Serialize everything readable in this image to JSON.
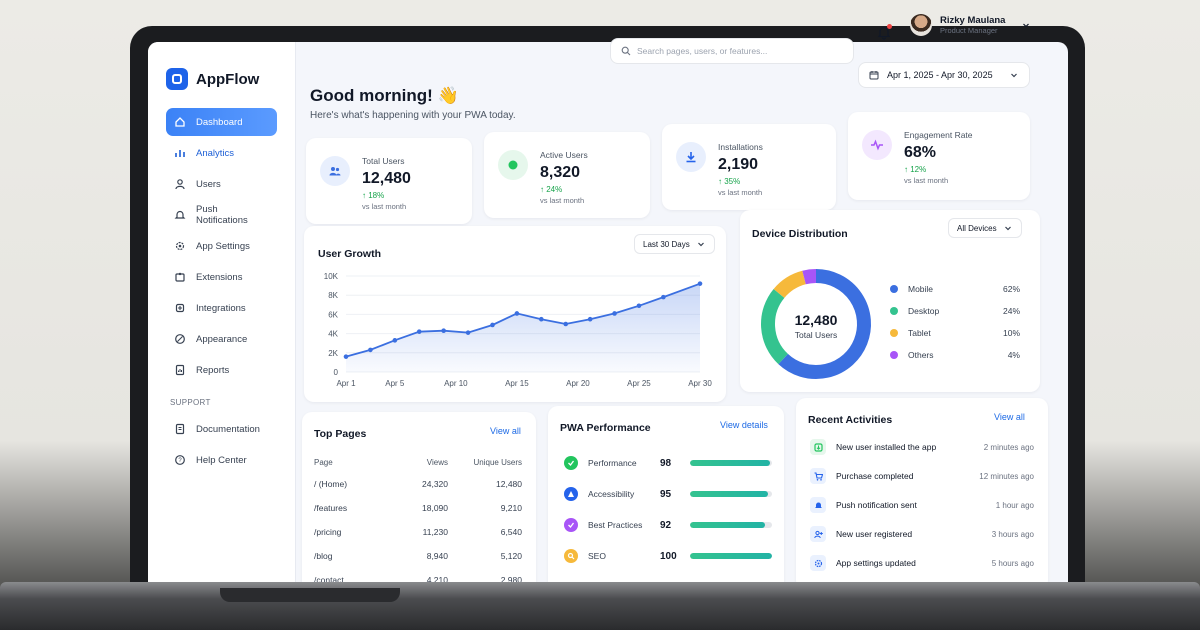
{
  "app": {
    "name": "AppFlow"
  },
  "sidebar": {
    "items": [
      {
        "label": "Dashboard",
        "icon": "home-icon"
      },
      {
        "label": "Analytics",
        "icon": "bar-chart-icon"
      },
      {
        "label": "Users",
        "icon": "user-icon"
      },
      {
        "label": "Push Notifications",
        "icon": "bell-icon"
      },
      {
        "label": "App Settings",
        "icon": "gear-icon"
      },
      {
        "label": "Extensions",
        "icon": "puzzle-icon"
      },
      {
        "label": "Integrations",
        "icon": "plug-icon"
      },
      {
        "label": "Appearance",
        "icon": "palette-icon"
      },
      {
        "label": "Reports",
        "icon": "report-icon"
      }
    ],
    "support_heading": "SUPPORT",
    "support_items": [
      {
        "label": "Documentation",
        "icon": "document-icon"
      },
      {
        "label": "Help Center",
        "icon": "help-icon"
      }
    ]
  },
  "header": {
    "search_placeholder": "Search pages, users, or features...",
    "user": {
      "name": "Rizky Maulana",
      "role": "Product Manager"
    },
    "date_range": "Apr 1, 2025 - Apr 30, 2025"
  },
  "greeting": {
    "title": "Good morning! 👋",
    "subtitle": "Here's what's happening with your PWA today."
  },
  "stats": [
    {
      "label": "Total Users",
      "value": "12,480",
      "delta": "↑ 18%",
      "note": "vs last month",
      "color": "#3b6fe0"
    },
    {
      "label": "Active Users",
      "value": "8,320",
      "delta": "↑ 24%",
      "note": "vs last month",
      "color": "#22c55e"
    },
    {
      "label": "Installations",
      "value": "2,190",
      "delta": "↑ 35%",
      "note": "vs last month",
      "color": "#2563eb"
    },
    {
      "label": "Engagement Rate",
      "value": "68%",
      "delta": "↑ 12%",
      "note": "vs last month",
      "color": "#a855f7"
    }
  ],
  "user_growth": {
    "title": "User Growth",
    "filter": "Last 30 Days",
    "chart_data": {
      "type": "area",
      "x": [
        "Apr 1",
        "Apr 3",
        "Apr 5",
        "Apr 7",
        "Apr 9",
        "Apr 11",
        "Apr 13",
        "Apr 15",
        "Apr 17",
        "Apr 19",
        "Apr 21",
        "Apr 23",
        "Apr 25",
        "Apr 27",
        "Apr 30"
      ],
      "values": [
        1600,
        2300,
        3300,
        4200,
        4300,
        4100,
        4900,
        6100,
        5500,
        5000,
        5500,
        6100,
        6900,
        7800,
        9200
      ],
      "x_ticks": [
        "Apr 1",
        "Apr 5",
        "Apr 10",
        "Apr 15",
        "Apr 20",
        "Apr 25",
        "Apr 30"
      ],
      "y_ticks": [
        "0",
        "2K",
        "4K",
        "6K",
        "8K",
        "10K"
      ],
      "ylim": [
        0,
        10000
      ],
      "color": "#3b6fe0"
    }
  },
  "device_distribution": {
    "title": "Device Distribution",
    "filter": "All Devices",
    "center_value": "12,480",
    "center_label": "Total Users",
    "chart_data": {
      "type": "pie",
      "categories": [
        "Mobile",
        "Desktop",
        "Tablet",
        "Others"
      ],
      "values": [
        62,
        24,
        10,
        4
      ],
      "labels": [
        "62%",
        "24%",
        "10%",
        "4%"
      ],
      "colors": [
        "#3b6fe0",
        "#34c38f",
        "#f6b93b",
        "#a855f7"
      ]
    }
  },
  "top_pages": {
    "title": "Top Pages",
    "link": "View all",
    "headers": [
      "Page",
      "Views",
      "Unique Users"
    ],
    "rows": [
      [
        "/ (Home)",
        "24,320",
        "12,480"
      ],
      [
        "/features",
        "18,090",
        "9,210"
      ],
      [
        "/pricing",
        "11,230",
        "6,540"
      ],
      [
        "/blog",
        "8,940",
        "5,120"
      ],
      [
        "/contact",
        "4,210",
        "2,980"
      ]
    ]
  },
  "pwa_performance": {
    "title": "PWA Performance",
    "link": "View details",
    "items": [
      {
        "label": "Performance",
        "value": "98",
        "score": 98,
        "color": "#22c55e"
      },
      {
        "label": "Accessibility",
        "value": "95",
        "score": 95,
        "color": "#2563eb"
      },
      {
        "label": "Best Practices",
        "value": "92",
        "score": 92,
        "color": "#a855f7"
      },
      {
        "label": "SEO",
        "value": "100",
        "score": 100,
        "color": "#f6b93b"
      }
    ]
  },
  "recent_activities": {
    "title": "Recent Activities",
    "link": "View all",
    "items": [
      {
        "text": "New user installed the app",
        "time": "2 minutes ago",
        "icon": "install-icon"
      },
      {
        "text": "Purchase completed",
        "time": "12 minutes ago",
        "icon": "cart-icon"
      },
      {
        "text": "Push notification sent",
        "time": "1 hour ago",
        "icon": "bell-icon"
      },
      {
        "text": "New user registered",
        "time": "3 hours ago",
        "icon": "user-add-icon"
      },
      {
        "text": "App settings updated",
        "time": "5 hours ago",
        "icon": "gear-icon"
      }
    ]
  }
}
